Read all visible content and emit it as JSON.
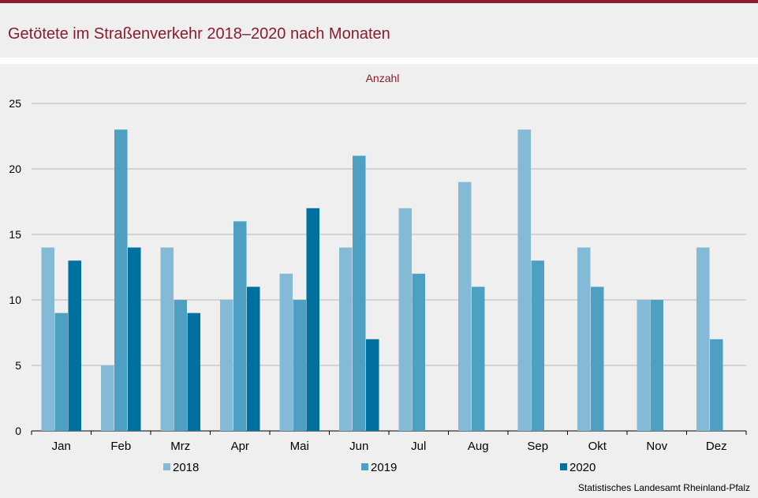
{
  "title": "Getötete im Straßenverkehr 2018–2020 nach Monaten",
  "source": "Statistisches Landesamt Rheinland-Pfalz",
  "colors": {
    "brand": "#8b1c2e",
    "background": "#eeefee",
    "grid": "#b7b7b7",
    "series": [
      "#84bad5",
      "#4ea0c2",
      "#00709f"
    ]
  },
  "chart_data": {
    "type": "bar",
    "ylabel": "Anzahl",
    "ylim": [
      0,
      25
    ],
    "yticks": [
      0,
      5,
      10,
      15,
      20,
      25
    ],
    "grid": true,
    "legend_position": "bottom",
    "categories": [
      "Jan",
      "Feb",
      "Mrz",
      "Apr",
      "Mai",
      "Jun",
      "Jul",
      "Aug",
      "Sep",
      "Okt",
      "Nov",
      "Dez"
    ],
    "series": [
      {
        "name": "2018",
        "values": [
          14,
          5,
          14,
          10,
          12,
          14,
          17,
          19,
          23,
          14,
          10,
          14
        ]
      },
      {
        "name": "2019",
        "values": [
          9,
          23,
          10,
          16,
          10,
          21,
          12,
          11,
          13,
          11,
          10,
          7
        ]
      },
      {
        "name": "2020",
        "values": [
          13,
          14,
          9,
          11,
          17,
          7,
          null,
          null,
          null,
          null,
          null,
          null
        ]
      }
    ]
  }
}
